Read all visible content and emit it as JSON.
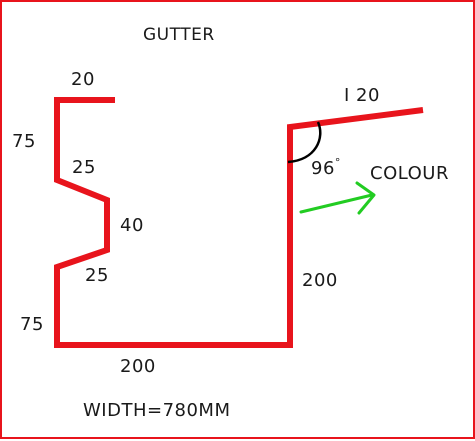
{
  "title": "GUTTER",
  "width_note": "WIDTH=780MM",
  "colour_label": "COLOUR",
  "angle_label": "96",
  "angle_unit": "°",
  "dimensions": {
    "top_lip": "20",
    "upper_back": "75",
    "upper_bend": "25",
    "kink": "40",
    "lower_bend": "25",
    "lower_back": "75",
    "base": "200",
    "front": "200",
    "front_flange": "I 20"
  },
  "colors": {
    "profile": "#e8141c",
    "arrow": "#22cc22",
    "angle_arc": "#000000",
    "border": "#e8141c"
  }
}
